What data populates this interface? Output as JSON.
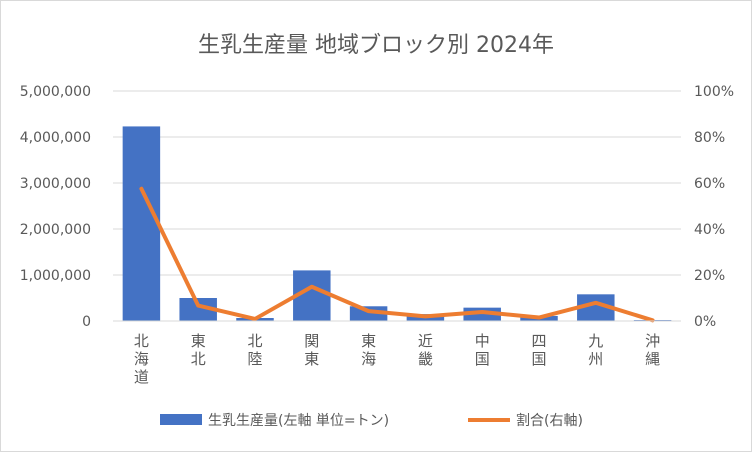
{
  "chart_data": {
    "type": "bar",
    "title": "生乳生産量 地域ブロック別 2024年",
    "categories": [
      "北海道",
      "東北",
      "北陸",
      "関東",
      "東海",
      "近畿",
      "中国",
      "四国",
      "九州",
      "沖縄"
    ],
    "y_ticks": [
      "0",
      "1,000,000",
      "2,000,000",
      "3,000,000",
      "4,000,000",
      "5,000,000"
    ],
    "y2_ticks": [
      "0%",
      "20%",
      "40%",
      "60%",
      "80%",
      "100%"
    ],
    "ylim": [
      0,
      5000000
    ],
    "y2lim": [
      0,
      1.0
    ],
    "series": [
      {
        "name": "生乳生産量(左軸 単位=トン)",
        "type": "bar",
        "axis": "left",
        "color": "#4472c4",
        "values": [
          4230000,
          500000,
          65000,
          1100000,
          320000,
          150000,
          290000,
          110000,
          580000,
          20000
        ]
      },
      {
        "name": "割合(右軸)",
        "type": "line",
        "axis": "right",
        "color": "#ed7d31",
        "values": [
          0.575,
          0.067,
          0.009,
          0.149,
          0.043,
          0.02,
          0.039,
          0.015,
          0.079,
          0.003
        ]
      }
    ],
    "grid": true,
    "legend_position": "bottom"
  }
}
